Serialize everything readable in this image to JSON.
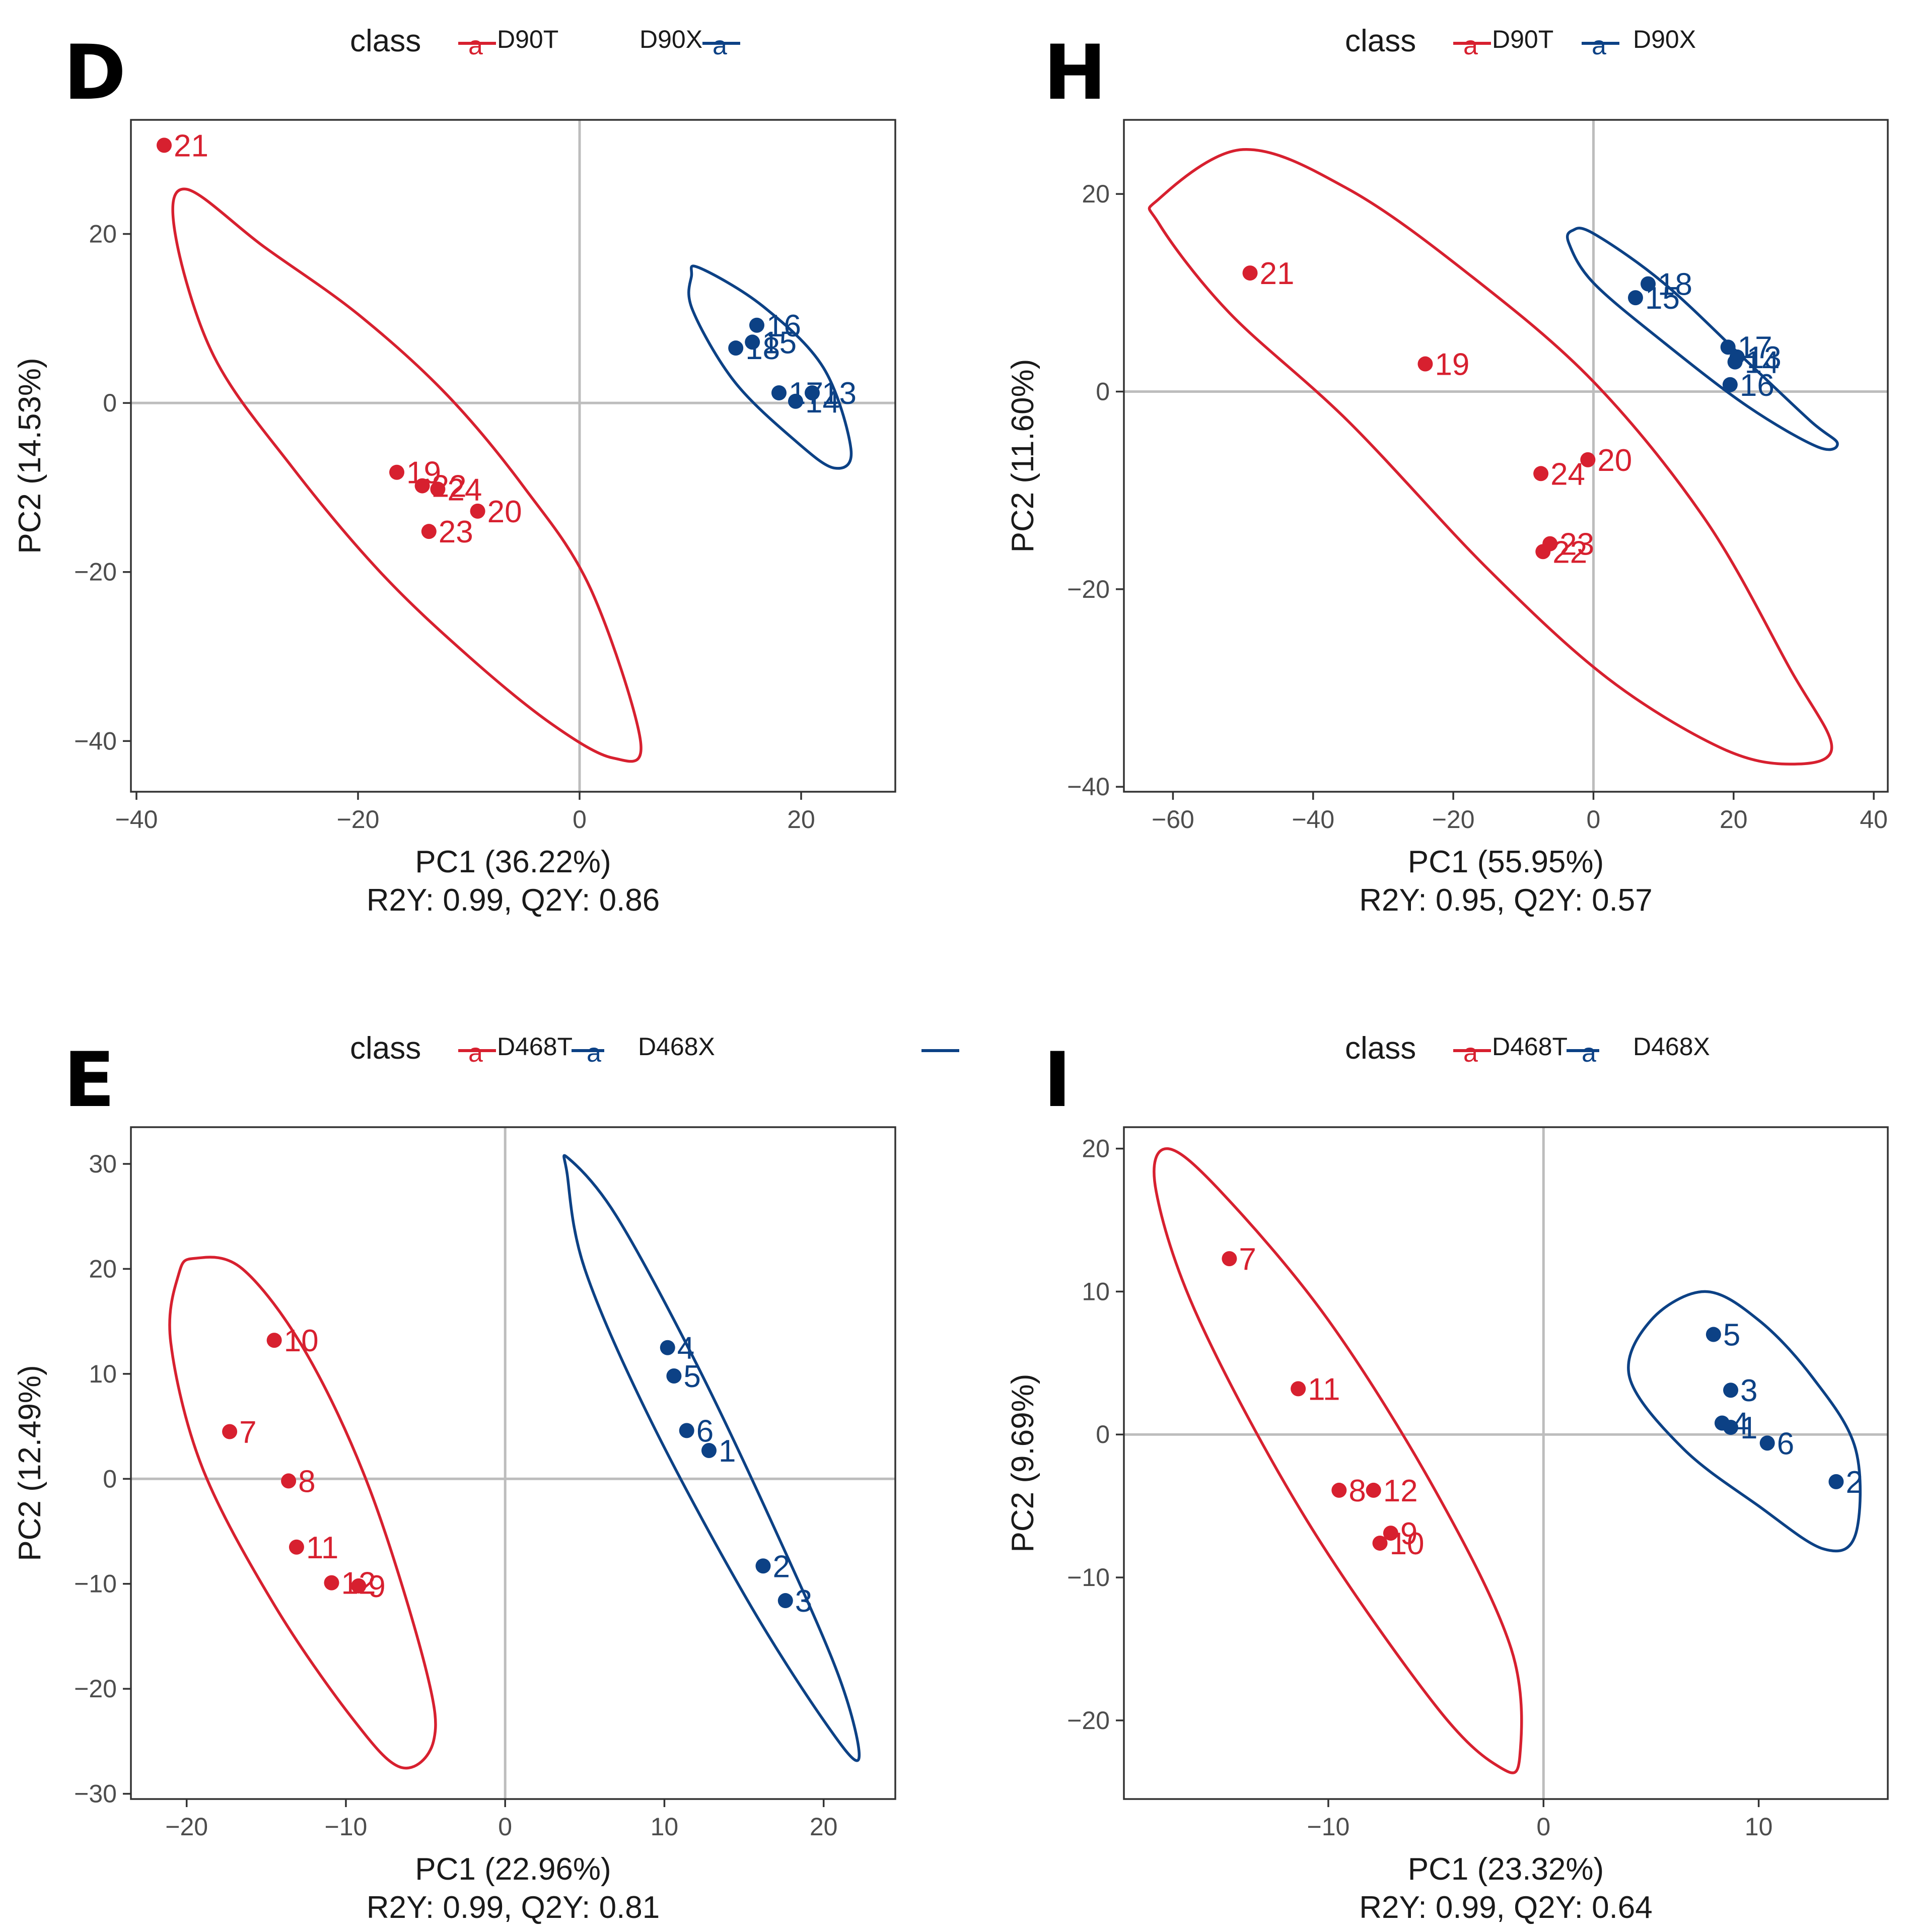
{
  "colors": {
    "t_class": "#d7202f",
    "x_class": "#0c4185",
    "axis_line": "#bdbdbd",
    "frame": "#333333",
    "text": "#1a1a1a"
  },
  "icons": {
    "legend_point": "legend-point-icon",
    "legend_letter": "a"
  },
  "chart_data": [
    {
      "id": "D",
      "panel_letter": "D",
      "type": "scatter",
      "legend": {
        "title": "class",
        "entries": [
          "D90T",
          "D90X"
        ],
        "glyph": "a"
      },
      "xlabel": "PC1 (36.22%)",
      "ylabel": "PC2 (14.53%)",
      "subtitle": "R2Y: 0.99, Q2Y: 0.86",
      "xlim": [
        -40.5,
        28.5
      ],
      "ylim": [
        -46,
        33.5
      ],
      "xticks": [
        -40,
        -20,
        0,
        20
      ],
      "yticks": [
        -40,
        -20,
        0,
        20
      ],
      "xtick_labels": [
        "−40",
        "−20",
        "0",
        "20"
      ],
      "ytick_labels": [
        "−40",
        "−20",
        "0",
        "20"
      ],
      "series": [
        {
          "name": "D90T",
          "color": "#d7202f",
          "points": [
            {
              "label": "21",
              "x": -37.5,
              "y": 30.5
            },
            {
              "label": "19",
              "x": -16.5,
              "y": -8.2
            },
            {
              "label": "22",
              "x": -14.2,
              "y": -9.8
            },
            {
              "label": "24",
              "x": -12.8,
              "y": -10.2
            },
            {
              "label": "20",
              "x": -9.2,
              "y": -12.8
            },
            {
              "label": "23",
              "x": -13.6,
              "y": -15.2
            }
          ],
          "ellipse": [
            {
              "x": -35.5,
              "y": 25.3
            },
            {
              "x": -28.5,
              "y": 18.5
            },
            {
              "x": -20,
              "y": 10.5
            },
            {
              "x": -12,
              "y": 1
            },
            {
              "x": -5,
              "y": -10
            },
            {
              "x": 1,
              "y": -22
            },
            {
              "x": 5.5,
              "y": -40
            },
            {
              "x": 3,
              "y": -42
            },
            {
              "x": -2.5,
              "y": -38
            },
            {
              "x": -10,
              "y": -30
            },
            {
              "x": -18,
              "y": -20
            },
            {
              "x": -26,
              "y": -7.5
            },
            {
              "x": -33,
              "y": 5.5
            },
            {
              "x": -36.5,
              "y": 20
            }
          ]
        },
        {
          "name": "D90X",
          "color": "#0c4185",
          "points": [
            {
              "label": "16",
              "x": 16,
              "y": 9.2
            },
            {
              "label": "15",
              "x": 15.6,
              "y": 7.2
            },
            {
              "label": "18",
              "x": 14.1,
              "y": 6.5
            },
            {
              "label": "17",
              "x": 18,
              "y": 1.2
            },
            {
              "label": "13",
              "x": 21,
              "y": 1.2
            },
            {
              "label": "14",
              "x": 19.5,
              "y": 0.2
            }
          ],
          "ellipse": [
            {
              "x": 10.8,
              "y": 16
            },
            {
              "x": 16.5,
              "y": 11.5
            },
            {
              "x": 22,
              "y": 4.2
            },
            {
              "x": 24.5,
              "y": -5.5
            },
            {
              "x": 23,
              "y": -7.7
            },
            {
              "x": 19.5,
              "y": -4.5
            },
            {
              "x": 14,
              "y": 2.5
            },
            {
              "x": 10.2,
              "y": 11
            },
            {
              "x": 10.1,
              "y": 15
            }
          ]
        }
      ]
    },
    {
      "id": "H",
      "panel_letter": "H",
      "type": "scatter",
      "legend": {
        "title": "class",
        "entries": [
          "D90T",
          "D90X"
        ],
        "glyph": "a"
      },
      "xlabel": "PC1 (55.95%)",
      "ylabel": "PC2 (11.60%)",
      "subtitle": "R2Y: 0.95, Q2Y: 0.57",
      "xlim": [
        -67,
        42
      ],
      "ylim": [
        -40.5,
        27.5
      ],
      "xticks": [
        -60,
        -40,
        -20,
        0,
        20,
        40
      ],
      "yticks": [
        -40,
        -20,
        0,
        20
      ],
      "xtick_labels": [
        "−60",
        "−40",
        "−20",
        "0",
        "20",
        "40"
      ],
      "ytick_labels": [
        "−40",
        "−20",
        "0",
        "20"
      ],
      "series": [
        {
          "name": "D90T",
          "color": "#d7202f",
          "points": [
            {
              "label": "21",
              "x": -49,
              "y": 12
            },
            {
              "label": "19",
              "x": -24,
              "y": 2.8
            },
            {
              "label": "24",
              "x": -7.5,
              "y": -8.3
            },
            {
              "label": "20",
              "x": -0.8,
              "y": -6.9
            },
            {
              "label": "23",
              "x": -6.2,
              "y": -15.4
            },
            {
              "label": "22",
              "x": -7.2,
              "y": -16.2
            }
          ],
          "ellipse": [
            {
              "x": -62,
              "y": 19.5
            },
            {
              "x": -50,
              "y": 24.5
            },
            {
              "x": -35,
              "y": 20.5
            },
            {
              "x": -18,
              "y": 12
            },
            {
              "x": 0,
              "y": 1
            },
            {
              "x": 16,
              "y": -13
            },
            {
              "x": 28,
              "y": -28
            },
            {
              "x": 34,
              "y": -36
            },
            {
              "x": 28,
              "y": -37.7
            },
            {
              "x": 18,
              "y": -36
            },
            {
              "x": 2,
              "y": -29
            },
            {
              "x": -15,
              "y": -18
            },
            {
              "x": -35,
              "y": -3
            },
            {
              "x": -52,
              "y": 8
            },
            {
              "x": -62,
              "y": 17
            }
          ]
        },
        {
          "name": "D90X",
          "color": "#0c4185",
          "points": [
            {
              "label": "18",
              "x": 7.8,
              "y": 10.9
            },
            {
              "label": "15",
              "x": 6,
              "y": 9.5
            },
            {
              "label": "17",
              "x": 19.2,
              "y": 4.5
            },
            {
              "label": "13",
              "x": 20.5,
              "y": 3.5
            },
            {
              "label": "14",
              "x": 20.2,
              "y": 3
            },
            {
              "label": "16",
              "x": 19.5,
              "y": 0.7
            }
          ],
          "ellipse": [
            {
              "x": -3,
              "y": 16.3
            },
            {
              "x": 0,
              "y": 16
            },
            {
              "x": 10,
              "y": 11
            },
            {
              "x": 22,
              "y": 3
            },
            {
              "x": 31,
              "y": -3
            },
            {
              "x": 34.8,
              "y": -5.2
            },
            {
              "x": 32,
              "y": -5.6
            },
            {
              "x": 22,
              "y": -1.5
            },
            {
              "x": 10,
              "y": 5
            },
            {
              "x": 0,
              "y": 11
            },
            {
              "x": -3.5,
              "y": 15
            }
          ]
        }
      ]
    },
    {
      "id": "E",
      "panel_letter": "E",
      "type": "scatter",
      "legend": {
        "title": "class",
        "entries": [
          "D468T",
          "D468X"
        ],
        "glyph": "a"
      },
      "xlabel": "PC1 (22.96%)",
      "ylabel": "PC2 (12.49%)",
      "subtitle": "R2Y: 0.99, Q2Y: 0.81",
      "xlim": [
        -23.5,
        24.5
      ],
      "ylim": [
        -30.5,
        33.5
      ],
      "xticks": [
        -20,
        -10,
        0,
        10,
        20
      ],
      "yticks": [
        -30,
        -20,
        -10,
        0,
        10,
        20,
        30
      ],
      "xtick_labels": [
        "−20",
        "−10",
        "0",
        "10",
        "20"
      ],
      "ytick_labels": [
        "−30",
        "−20",
        "−10",
        "0",
        "10",
        "20",
        "30"
      ],
      "series": [
        {
          "name": "D468T",
          "color": "#d7202f",
          "points": [
            {
              "label": "10",
              "x": -14.5,
              "y": 13.2
            },
            {
              "label": "7",
              "x": -17.3,
              "y": 4.5
            },
            {
              "label": "8",
              "x": -13.6,
              "y": -0.2
            },
            {
              "label": "11",
              "x": -13.1,
              "y": -6.5
            },
            {
              "label": "12",
              "x": -10.9,
              "y": -9.9
            },
            {
              "label": "9",
              "x": -9.2,
              "y": -10.2
            }
          ],
          "ellipse": [
            {
              "x": -19.5,
              "y": 21
            },
            {
              "x": -16.5,
              "y": 20
            },
            {
              "x": -12.5,
              "y": 12
            },
            {
              "x": -8.5,
              "y": -1
            },
            {
              "x": -5,
              "y": -18
            },
            {
              "x": -4.5,
              "y": -25
            },
            {
              "x": -6.5,
              "y": -27.5
            },
            {
              "x": -9.5,
              "y": -23
            },
            {
              "x": -14.5,
              "y": -12
            },
            {
              "x": -19,
              "y": 1
            },
            {
              "x": -21,
              "y": 13
            },
            {
              "x": -20.5,
              "y": 19.5
            }
          ]
        },
        {
          "name": "D468X",
          "color": "#0c4185",
          "points": [
            {
              "label": "4",
              "x": 10.2,
              "y": 12.5
            },
            {
              "label": "5",
              "x": 10.6,
              "y": 9.8
            },
            {
              "label": "6",
              "x": 11.4,
              "y": 4.6
            },
            {
              "label": "1",
              "x": 12.8,
              "y": 2.7
            },
            {
              "label": "2",
              "x": 16.2,
              "y": -8.3
            },
            {
              "label": "3",
              "x": 17.6,
              "y": -11.6
            }
          ],
          "ellipse": [
            {
              "x": 4,
              "y": 30.5
            },
            {
              "x": 7,
              "y": 25
            },
            {
              "x": 12,
              "y": 11
            },
            {
              "x": 17,
              "y": -5
            },
            {
              "x": 21,
              "y": -19
            },
            {
              "x": 22.2,
              "y": -26.7
            },
            {
              "x": 20,
              "y": -23
            },
            {
              "x": 15,
              "y": -11
            },
            {
              "x": 9,
              "y": 6
            },
            {
              "x": 5,
              "y": 20
            },
            {
              "x": 3.9,
              "y": 29
            }
          ]
        }
      ]
    },
    {
      "id": "I",
      "panel_letter": "I",
      "type": "scatter",
      "legend": {
        "title": "class",
        "entries": [
          "D468T",
          "D468X"
        ],
        "glyph": "a"
      },
      "xlabel": "PC1 (23.32%)",
      "ylabel": "PC2 (9.69%)",
      "subtitle": "R2Y: 0.99, Q2Y: 0.64",
      "xlim": [
        -19.5,
        16
      ],
      "ylim": [
        -25.5,
        21.5
      ],
      "xticks": [
        -10,
        0,
        10
      ],
      "yticks": [
        -20,
        -10,
        0,
        10,
        20
      ],
      "xtick_labels": [
        "−10",
        "0",
        "10"
      ],
      "ytick_labels": [
        "−20",
        "−10",
        "0",
        "10",
        "20"
      ],
      "series": [
        {
          "name": "D468T",
          "color": "#d7202f",
          "points": [
            {
              "label": "7",
              "x": -14.6,
              "y": 12.3
            },
            {
              "label": "11",
              "x": -11.4,
              "y": 3.2
            },
            {
              "label": "8",
              "x": -9.5,
              "y": -3.9
            },
            {
              "label": "12",
              "x": -7.9,
              "y": -3.9
            },
            {
              "label": "9",
              "x": -7.1,
              "y": -6.9
            },
            {
              "label": "10",
              "x": -7.6,
              "y": -7.6
            }
          ],
          "ellipse": [
            {
              "x": -17.5,
              "y": 20
            },
            {
              "x": -15,
              "y": 17
            },
            {
              "x": -10,
              "y": 8
            },
            {
              "x": -5,
              "y": -4
            },
            {
              "x": -1.5,
              "y": -15
            },
            {
              "x": -1.1,
              "y": -22.5
            },
            {
              "x": -2,
              "y": -23.3
            },
            {
              "x": -5,
              "y": -19
            },
            {
              "x": -11,
              "y": -6
            },
            {
              "x": -16,
              "y": 8
            },
            {
              "x": -18,
              "y": 17
            }
          ]
        },
        {
          "name": "D468X",
          "color": "#0c4185",
          "points": [
            {
              "label": "5",
              "x": 7.9,
              "y": 7
            },
            {
              "label": "3",
              "x": 8.7,
              "y": 3.1
            },
            {
              "label": "4",
              "x": 8.3,
              "y": 0.8
            },
            {
              "label": "1",
              "x": 8.7,
              "y": 0.5
            },
            {
              "label": "6",
              "x": 10.4,
              "y": -0.6
            },
            {
              "label": "2",
              "x": 13.6,
              "y": -3.3
            }
          ],
          "ellipse": [
            {
              "x": 5,
              "y": 8
            },
            {
              "x": 7.5,
              "y": 10
            },
            {
              "x": 10,
              "y": 8
            },
            {
              "x": 12.5,
              "y": 4
            },
            {
              "x": 14.5,
              "y": -1
            },
            {
              "x": 14.5,
              "y": -7
            },
            {
              "x": 13,
              "y": -8
            },
            {
              "x": 10,
              "y": -5
            },
            {
              "x": 6.5,
              "y": -1
            },
            {
              "x": 4,
              "y": 4
            }
          ]
        }
      ]
    }
  ]
}
